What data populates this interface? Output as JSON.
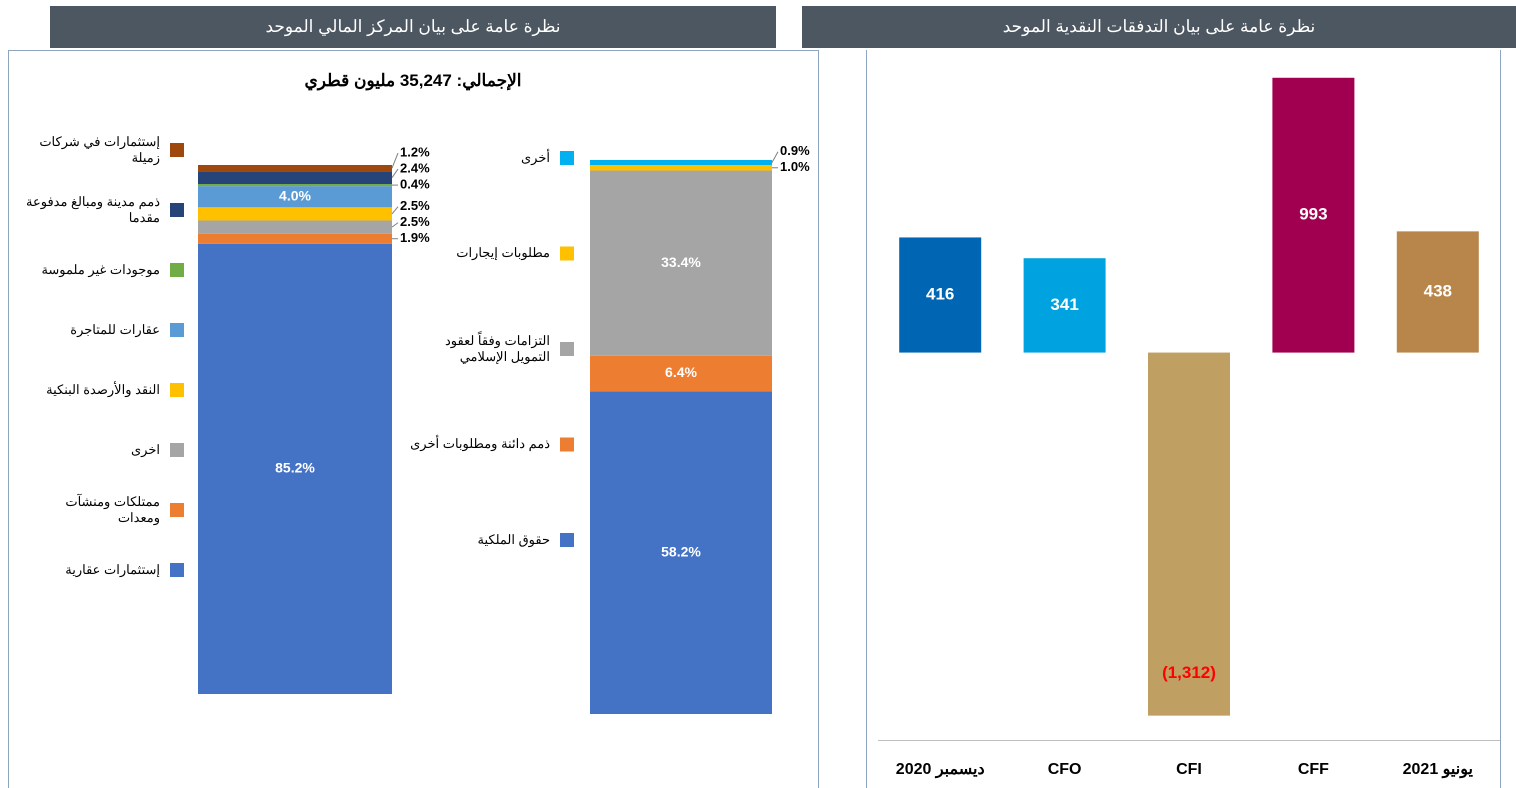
{
  "chart_data": [
    {
      "type": "stacked_bar",
      "title": "نظرة عامة على بيان المركز المالي الموحد",
      "subtitle": "الإجمالي: 35,247 مليون قطري",
      "groups": [
        {
          "series": [
            {
              "name": "إستثمارات عقارية",
              "color": "#4472c4",
              "value": 85.2,
              "value_label": "85.2%"
            },
            {
              "name": "ممتلكات ومنشآت ومعدات",
              "color": "#ed7d31",
              "value": 1.9,
              "value_label": "1.9%"
            },
            {
              "name": "اخرى",
              "color": "#a5a5a5",
              "value": 2.5,
              "value_label": "2.5%"
            },
            {
              "name": "النقد والأرصدة البنكية",
              "color": "#ffc000",
              "value": 2.5,
              "value_label": "2.5%"
            },
            {
              "name": "عقارات للمتاجرة",
              "color": "#5b9bd5",
              "value": 4.0,
              "value_label": "4.0%"
            },
            {
              "name": "موجودات غير ملموسة",
              "color": "#70ad47",
              "value": 0.4,
              "value_label": "0.4%"
            },
            {
              "name": "ذمم مدينة ومبالغ مدفوعة مقدما",
              "color": "#264478",
              "value": 2.4,
              "value_label": "2.4%"
            },
            {
              "name": "إستثمارات في شركات زميلة",
              "color": "#9e480e",
              "value": 1.2,
              "value_label": "1.2%"
            }
          ]
        },
        {
          "series": [
            {
              "name": "حقوق الملكية",
              "color": "#4472c4",
              "value": 58.2,
              "value_label": "58.2%"
            },
            {
              "name": "ذمم دائنة ومطلوبات أخرى",
              "color": "#ed7d31",
              "value": 6.4,
              "value_label": "6.4%"
            },
            {
              "name": "التزامات وفقاً لعقود التمويل الإسلامي",
              "color": "#a5a5a5",
              "value": 33.4,
              "value_label": "33.4%"
            },
            {
              "name": "مطلوبات إيجارات",
              "color": "#ffc000",
              "value": 1.0,
              "value_label": "1.0%"
            },
            {
              "name": "أخرى",
              "color": "#00b0f0",
              "value": 0.9,
              "value_label": "0.9%"
            }
          ]
        }
      ]
    },
    {
      "type": "bar",
      "title": "نظرة عامة على بيان التدفقات النقدية الموحد",
      "categories": [
        "ديسمبر 2020",
        "CFO",
        "CFI",
        "CFF",
        "يونيو 2021"
      ],
      "values": [
        416,
        341,
        -1312,
        993,
        438
      ],
      "value_labels": [
        "416",
        "341",
        "(1,312)",
        "993",
        "438"
      ],
      "colors": [
        "#0066b3",
        "#00a3e0",
        "#c0a062",
        "#a0004f",
        "#b8864a"
      ],
      "ylim": [
        -1400,
        1050
      ],
      "label_color": "#ffffff",
      "negative_label_color": "#ff0000"
    }
  ]
}
